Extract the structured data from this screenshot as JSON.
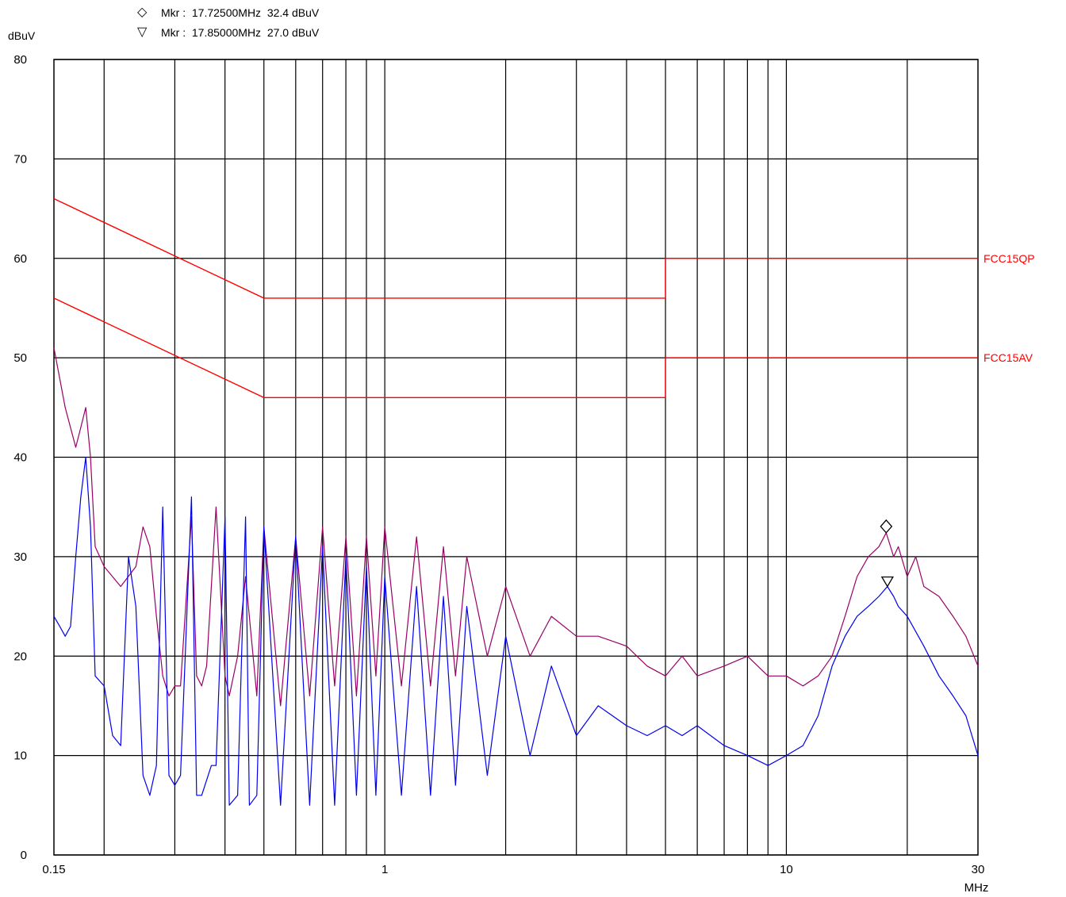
{
  "markers": {
    "m1": {
      "symbol": "◇",
      "text": "Mkr :  17.72500MHz  32.4 dBuV"
    },
    "m2": {
      "symbol": "▽",
      "text": "Mkr :  17.85000MHz  27.0 dBuV"
    }
  },
  "chart_data": {
    "type": "line",
    "title": "",
    "ylabel": "dBuV",
    "xlabel": "MHz",
    "x_scale": "log",
    "xlim": [
      0.15,
      30
    ],
    "ylim": [
      0,
      80
    ],
    "grid": true,
    "x_tick_labels": [
      {
        "value": 0.15,
        "label": "0.15"
      },
      {
        "value": 1,
        "label": "1"
      },
      {
        "value": 10,
        "label": "10"
      },
      {
        "value": 30,
        "label": "30"
      }
    ],
    "x_grid_lines": [
      0.2,
      0.3,
      0.4,
      0.5,
      0.6,
      0.7,
      0.8,
      0.9,
      1,
      2,
      3,
      4,
      5,
      6,
      7,
      8,
      9,
      10,
      20
    ],
    "y_ticks": [
      0,
      10,
      20,
      30,
      40,
      50,
      60,
      70,
      80
    ],
    "limit_lines": [
      {
        "name": "FCC15QP",
        "color": "#ff0000",
        "x": [
          0.15,
          0.5,
          0.5,
          5,
          5,
          30
        ],
        "y": [
          66,
          56,
          56,
          56,
          60,
          60
        ]
      },
      {
        "name": "FCC15AV",
        "color": "#ff0000",
        "x": [
          0.15,
          0.5,
          0.5,
          5,
          5,
          30
        ],
        "y": [
          56,
          46,
          46,
          46,
          50,
          50
        ]
      }
    ],
    "series": [
      {
        "color": "#990066",
        "x": [
          0.15,
          0.16,
          0.17,
          0.175,
          0.18,
          0.185,
          0.19,
          0.195,
          0.2,
          0.22,
          0.24,
          0.25,
          0.26,
          0.27,
          0.28,
          0.29,
          0.3,
          0.31,
          0.33,
          0.34,
          0.35,
          0.36,
          0.38,
          0.4,
          0.41,
          0.42,
          0.43,
          0.45,
          0.47,
          0.48,
          0.5,
          0.55,
          0.6,
          0.65,
          0.7,
          0.75,
          0.8,
          0.85,
          0.9,
          0.95,
          1.0,
          1.1,
          1.2,
          1.3,
          1.4,
          1.5,
          1.6,
          1.8,
          2.0,
          2.3,
          2.6,
          3.0,
          3.4,
          4.0,
          4.5,
          5.0,
          5.5,
          6.0,
          7.0,
          8.0,
          9.0,
          10.0,
          11.0,
          12.0,
          13.0,
          14.0,
          15.0,
          16.0,
          17.0,
          17.725,
          18.5,
          19.0,
          20.0,
          21.0,
          22.0,
          24.0,
          26.0,
          28.0,
          30.0
        ],
        "y": [
          51,
          45,
          41,
          43,
          45,
          40,
          31,
          30,
          29,
          27,
          29,
          33,
          31,
          24,
          18,
          16,
          17,
          17,
          34,
          18,
          17,
          19,
          35,
          18,
          16,
          18,
          20,
          28,
          20,
          16,
          33,
          15,
          32,
          16,
          33,
          17,
          32,
          16,
          32,
          18,
          33,
          17,
          32,
          17,
          31,
          18,
          30,
          20,
          27,
          20,
          24,
          22,
          22,
          21,
          19,
          18,
          20,
          18,
          19,
          20,
          18,
          18,
          17,
          18,
          20,
          24,
          28,
          30,
          31,
          32.4,
          30,
          31,
          28,
          30,
          27,
          26,
          24,
          22,
          19
        ]
      },
      {
        "color": "#0000ee",
        "x": [
          0.15,
          0.155,
          0.16,
          0.165,
          0.17,
          0.175,
          0.18,
          0.185,
          0.19,
          0.2,
          0.21,
          0.22,
          0.23,
          0.24,
          0.25,
          0.26,
          0.27,
          0.28,
          0.29,
          0.3,
          0.31,
          0.33,
          0.34,
          0.35,
          0.37,
          0.38,
          0.4,
          0.41,
          0.43,
          0.45,
          0.46,
          0.48,
          0.5,
          0.55,
          0.6,
          0.65,
          0.7,
          0.75,
          0.8,
          0.85,
          0.9,
          0.95,
          1.0,
          1.1,
          1.2,
          1.3,
          1.4,
          1.5,
          1.6,
          1.8,
          2.0,
          2.3,
          2.6,
          3.0,
          3.4,
          4.0,
          4.5,
          5.0,
          5.5,
          6.0,
          7.0,
          8.0,
          9.0,
          10.0,
          11.0,
          12.0,
          13.0,
          14.0,
          15.0,
          16.0,
          17.0,
          17.85,
          18.5,
          19.0,
          20.0,
          22.0,
          24.0,
          26.0,
          28.0,
          30.0
        ],
        "y": [
          24,
          23,
          22,
          23,
          30,
          36,
          40,
          33,
          18,
          17,
          12,
          11,
          30,
          25,
          8,
          6,
          9,
          35,
          8,
          7,
          8,
          36,
          6,
          6,
          9,
          9,
          34,
          5,
          6,
          34,
          5,
          6,
          33,
          5,
          32,
          5,
          31,
          5,
          30,
          6,
          29,
          6,
          28,
          6,
          27,
          6,
          26,
          7,
          25,
          8,
          22,
          10,
          19,
          12,
          15,
          13,
          12,
          13,
          12,
          13,
          11,
          10,
          9,
          10,
          11,
          14,
          19,
          22,
          24,
          25,
          26,
          27,
          26,
          25,
          24,
          21,
          18,
          16,
          14,
          10
        ]
      }
    ]
  }
}
